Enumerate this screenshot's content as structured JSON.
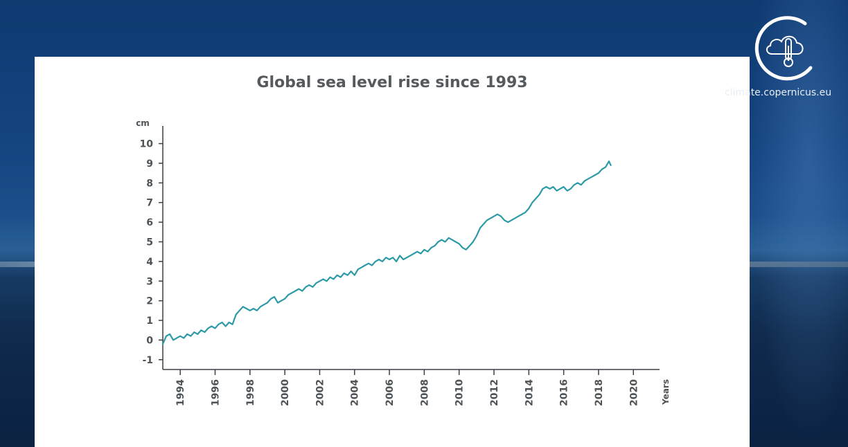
{
  "watermark": {
    "site": "climate.copernicus.eu",
    "logo_icon": "cloud-thermometer-icon"
  },
  "colors": {
    "series": "#2b9aa6",
    "axis": "#3a3f44",
    "text": "#4e5357",
    "title": "#555a5f"
  },
  "chart_data": {
    "type": "line",
    "title": "Global sea level rise since 1993",
    "xlabel": "Years",
    "ylabel": "cm",
    "xlim": [
      1993,
      2021.5
    ],
    "ylim": [
      -1.5,
      10.9
    ],
    "x_ticks": [
      1994,
      1996,
      1998,
      2000,
      2002,
      2004,
      2006,
      2008,
      2010,
      2012,
      2014,
      2016,
      2018,
      2020
    ],
    "y_ticks": [
      -1,
      0,
      1,
      2,
      3,
      4,
      5,
      6,
      7,
      8,
      9,
      10
    ],
    "grid": false,
    "legend": "none",
    "series": [
      {
        "x": [
          1993.0,
          1993.2,
          1993.4,
          1993.6,
          1993.8,
          1994.0,
          1994.2,
          1994.4,
          1994.6,
          1994.8,
          1995.0,
          1995.2,
          1995.4,
          1995.6,
          1995.8,
          1996.0,
          1996.2,
          1996.4,
          1996.6,
          1996.8,
          1997.0,
          1997.2,
          1997.4,
          1997.6,
          1997.8,
          1998.0,
          1998.2,
          1998.4,
          1998.6,
          1998.8,
          1999.0,
          1999.2,
          1999.4,
          1999.6,
          1999.8,
          2000.0,
          2000.2,
          2000.4,
          2000.6,
          2000.8,
          2001.0,
          2001.2,
          2001.4,
          2001.6,
          2001.8,
          2002.0,
          2002.2,
          2002.4,
          2002.6,
          2002.8,
          2003.0,
          2003.2,
          2003.4,
          2003.6,
          2003.8,
          2004.0,
          2004.2,
          2004.4,
          2004.6,
          2004.8,
          2005.0,
          2005.2,
          2005.4,
          2005.6,
          2005.8,
          2006.0,
          2006.2,
          2006.4,
          2006.6,
          2006.8,
          2007.0,
          2007.2,
          2007.4,
          2007.6,
          2007.8,
          2008.0,
          2008.2,
          2008.4,
          2008.6,
          2008.8,
          2009.0,
          2009.2,
          2009.4,
          2009.6,
          2009.8,
          2010.0,
          2010.2,
          2010.4,
          2010.6,
          2010.8,
          2011.0,
          2011.2,
          2011.4,
          2011.6,
          2011.8,
          2012.0,
          2012.2,
          2012.4,
          2012.6,
          2012.8,
          2013.0,
          2013.2,
          2013.4,
          2013.6,
          2013.8,
          2014.0,
          2014.2,
          2014.4,
          2014.6,
          2014.8,
          2015.0,
          2015.2,
          2015.4,
          2015.6,
          2015.8,
          2016.0,
          2016.2,
          2016.4,
          2016.6,
          2016.8,
          2017.0,
          2017.2,
          2017.4,
          2017.6,
          2017.8,
          2018.0,
          2018.2,
          2018.4,
          2018.6,
          2018.7
        ],
        "y": [
          -0.2,
          0.2,
          0.3,
          0.0,
          0.1,
          0.2,
          0.1,
          0.3,
          0.2,
          0.4,
          0.3,
          0.5,
          0.4,
          0.6,
          0.7,
          0.6,
          0.8,
          0.9,
          0.7,
          0.9,
          0.8,
          1.3,
          1.5,
          1.7,
          1.6,
          1.5,
          1.6,
          1.5,
          1.7,
          1.8,
          1.9,
          2.1,
          2.2,
          1.9,
          2.0,
          2.1,
          2.3,
          2.4,
          2.5,
          2.6,
          2.5,
          2.7,
          2.8,
          2.7,
          2.9,
          3.0,
          3.1,
          3.0,
          3.2,
          3.1,
          3.3,
          3.2,
          3.4,
          3.3,
          3.5,
          3.3,
          3.6,
          3.7,
          3.8,
          3.9,
          3.8,
          4.0,
          4.1,
          4.0,
          4.2,
          4.1,
          4.2,
          4.0,
          4.3,
          4.1,
          4.2,
          4.3,
          4.4,
          4.5,
          4.4,
          4.6,
          4.5,
          4.7,
          4.8,
          5.0,
          5.1,
          5.0,
          5.2,
          5.1,
          5.0,
          4.9,
          4.7,
          4.6,
          4.8,
          5.0,
          5.3,
          5.7,
          5.9,
          6.1,
          6.2,
          6.3,
          6.4,
          6.3,
          6.1,
          6.0,
          6.1,
          6.2,
          6.3,
          6.4,
          6.5,
          6.7,
          7.0,
          7.2,
          7.4,
          7.7,
          7.8,
          7.7,
          7.8,
          7.6,
          7.7,
          7.8,
          7.6,
          7.7,
          7.9,
          8.0,
          7.9,
          8.1,
          8.2,
          8.3,
          8.4,
          8.5,
          8.7,
          8.8,
          9.1,
          8.9
        ]
      }
    ]
  }
}
